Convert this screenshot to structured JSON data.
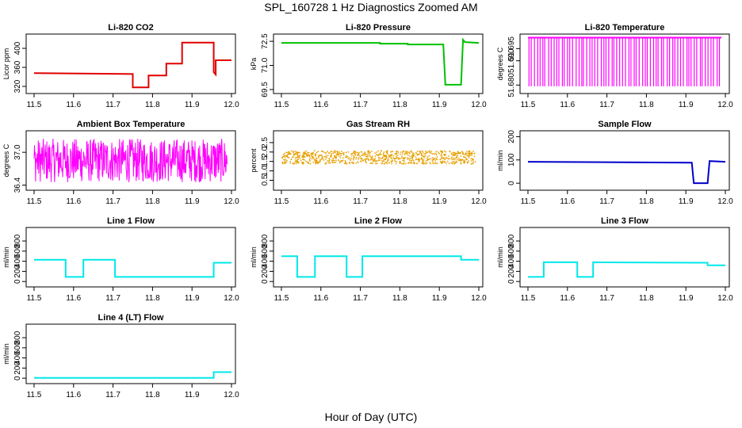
{
  "title": "SPL_160728 1 Hz Diagnostics Zoomed AM",
  "xaxis_caption": "Hour of Day (UTC)",
  "chart_data": [
    {
      "type": "line",
      "title": "Li-820 CO2",
      "ylabel": "Licor ppm",
      "color": "#e00000",
      "xlim": [
        11.49,
        12.0
      ],
      "xticks": [
        "11.5",
        "11.6",
        "11.7",
        "11.8",
        "11.9",
        "12.0"
      ],
      "ylim": [
        310,
        425
      ],
      "yticks": [
        "320",
        "360",
        "400"
      ],
      "ytick_values": [
        320,
        360,
        400
      ],
      "x": [
        11.5,
        11.75,
        11.75,
        11.79,
        11.79,
        11.835,
        11.835,
        11.875,
        11.875,
        11.955,
        11.955,
        11.96,
        11.96,
        12.0
      ],
      "y": [
        348,
        346,
        318,
        318,
        343,
        343,
        368,
        368,
        412,
        412,
        350,
        345,
        375,
        375
      ]
    },
    {
      "type": "line",
      "title": "Li-820 Pressure",
      "ylabel": "kPa",
      "color": "#00c000",
      "xlim": [
        11.49,
        12.0
      ],
      "xticks": [
        "11.5",
        "11.6",
        "11.7",
        "11.8",
        "11.9",
        "12.0"
      ],
      "ylim": [
        69.4,
        72.8
      ],
      "yticks": [
        "69.5",
        "71.0",
        "72.5"
      ],
      "ytick_values": [
        69.5,
        71.0,
        72.5
      ],
      "x": [
        11.5,
        11.75,
        11.75,
        11.82,
        11.82,
        11.91,
        11.915,
        11.915,
        11.955,
        11.958,
        11.96,
        11.965,
        12.0
      ],
      "y": [
        72.4,
        72.4,
        72.35,
        72.35,
        72.3,
        72.3,
        69.9,
        69.8,
        69.8,
        71.5,
        72.6,
        72.45,
        72.4
      ]
    },
    {
      "type": "line",
      "title": "Li-820 Temperature",
      "ylabel": "degrees C",
      "color": "#ff00ff",
      "xlim": [
        11.49,
        12.0
      ],
      "xticks": [
        "11.5",
        "11.6",
        "11.7",
        "11.8",
        "11.9",
        "12.0"
      ],
      "ylim": [
        51.6775,
        51.7
      ],
      "yticks": [
        "51.680",
        "51.690",
        "51.695"
      ],
      "ytick_values": [
        51.68,
        51.69,
        51.695
      ],
      "levels": [
        51.6795,
        51.6995
      ]
    },
    {
      "type": "line",
      "title": "Ambient Box Temperature",
      "ylabel": "degrees C",
      "color": "#ff00ff",
      "xlim": [
        11.49,
        12.0
      ],
      "xticks": [
        "11.5",
        "11.6",
        "11.7",
        "11.8",
        "11.9",
        "12.0"
      ],
      "ylim": [
        36.35,
        37.35
      ],
      "yticks": [
        "36.4",
        "37.0"
      ],
      "ytick_values": [
        36.4,
        37.0
      ],
      "center": 36.85,
      "spread": 0.4
    },
    {
      "type": "scatter",
      "title": "Gas Stream RH",
      "ylabel": "percent",
      "color": "#e8a000",
      "xlim": [
        11.49,
        12.0
      ],
      "xticks": [
        "11.5",
        "11.6",
        "11.7",
        "11.8",
        "11.9",
        "12.0"
      ],
      "ylim": [
        0.1,
        3.0
      ],
      "yticks": [
        "0.5",
        "1.0",
        "1.5",
        "2.0",
        "2.5"
      ],
      "ytick_values": [
        0.5,
        1.0,
        1.5,
        2.0,
        2.5
      ],
      "center": 1.75,
      "spread": 0.35
    },
    {
      "type": "line",
      "title": "Sample Flow",
      "ylabel": "ml/min",
      "color": "#0000cc",
      "xlim": [
        11.49,
        12.0
      ],
      "xticks": [
        "11.5",
        "11.6",
        "11.7",
        "11.8",
        "11.9",
        "12.0"
      ],
      "ylim": [
        -20,
        215
      ],
      "yticks": [
        "0",
        "100",
        "200"
      ],
      "ytick_values": [
        0,
        100,
        200
      ],
      "x": [
        11.5,
        11.915,
        11.92,
        11.955,
        11.96,
        12.0
      ],
      "y": [
        92,
        88,
        0,
        0,
        95,
        92
      ]
    },
    {
      "type": "line",
      "title": "Line 1 Flow",
      "ylabel": "ml/min",
      "color": "#00e8e8",
      "xlim": [
        11.49,
        12.0
      ],
      "xticks": [
        "11.5",
        "11.6",
        "11.7",
        "11.8",
        "11.9",
        "12.0"
      ],
      "ylim": [
        -60,
        1020
      ],
      "yticks": [
        "0",
        "200",
        "400",
        "600",
        "800"
      ],
      "ytick_values": [
        0,
        200,
        400,
        600,
        800
      ],
      "x": [
        11.5,
        11.58,
        11.58,
        11.625,
        11.625,
        11.705,
        11.705,
        11.955,
        11.955,
        12.0
      ],
      "y": [
        430,
        430,
        90,
        90,
        430,
        430,
        90,
        90,
        370,
        370
      ]
    },
    {
      "type": "line",
      "title": "Line 2 Flow",
      "ylabel": "ml/min",
      "color": "#00e8e8",
      "xlim": [
        11.49,
        12.0
      ],
      "xticks": [
        "11.5",
        "11.6",
        "11.7",
        "11.8",
        "11.9",
        "12.0"
      ],
      "ylim": [
        -60,
        1020
      ],
      "yticks": [
        "0",
        "200",
        "400",
        "600",
        "800"
      ],
      "ytick_values": [
        0,
        200,
        400,
        600,
        800
      ],
      "x": [
        11.5,
        11.54,
        11.54,
        11.585,
        11.585,
        11.665,
        11.665,
        11.705,
        11.705,
        11.955,
        11.955,
        12.0
      ],
      "y": [
        500,
        500,
        90,
        90,
        500,
        500,
        90,
        90,
        500,
        500,
        430,
        430
      ]
    },
    {
      "type": "line",
      "title": "Line 3 Flow",
      "ylabel": "ml/min",
      "color": "#00e8e8",
      "xlim": [
        11.49,
        12.0
      ],
      "xticks": [
        "11.5",
        "11.6",
        "11.7",
        "11.8",
        "11.9",
        "12.0"
      ],
      "ylim": [
        -60,
        1020
      ],
      "yticks": [
        "0",
        "200",
        "400",
        "600",
        "800"
      ],
      "ytick_values": [
        0,
        200,
        400,
        600,
        800
      ],
      "x": [
        11.5,
        11.54,
        11.54,
        11.625,
        11.625,
        11.665,
        11.665,
        11.955,
        11.955,
        12.0
      ],
      "y": [
        90,
        90,
        380,
        380,
        90,
        90,
        380,
        370,
        320,
        320
      ]
    },
    {
      "type": "line",
      "title": "Line 4 (LT) Flow",
      "ylabel": "ml/min",
      "color": "#00e8e8",
      "xlim": [
        11.49,
        12.0
      ],
      "xticks": [
        "11.5",
        "11.6",
        "11.7",
        "11.8",
        "11.9",
        "12.0"
      ],
      "ylim": [
        -60,
        1020
      ],
      "yticks": [
        "0",
        "200",
        "400",
        "600",
        "800"
      ],
      "ytick_values": [
        0,
        200,
        400,
        600,
        800
      ],
      "x": [
        11.5,
        11.955,
        11.955,
        12.0
      ],
      "y": [
        5,
        5,
        120,
        120
      ]
    }
  ]
}
